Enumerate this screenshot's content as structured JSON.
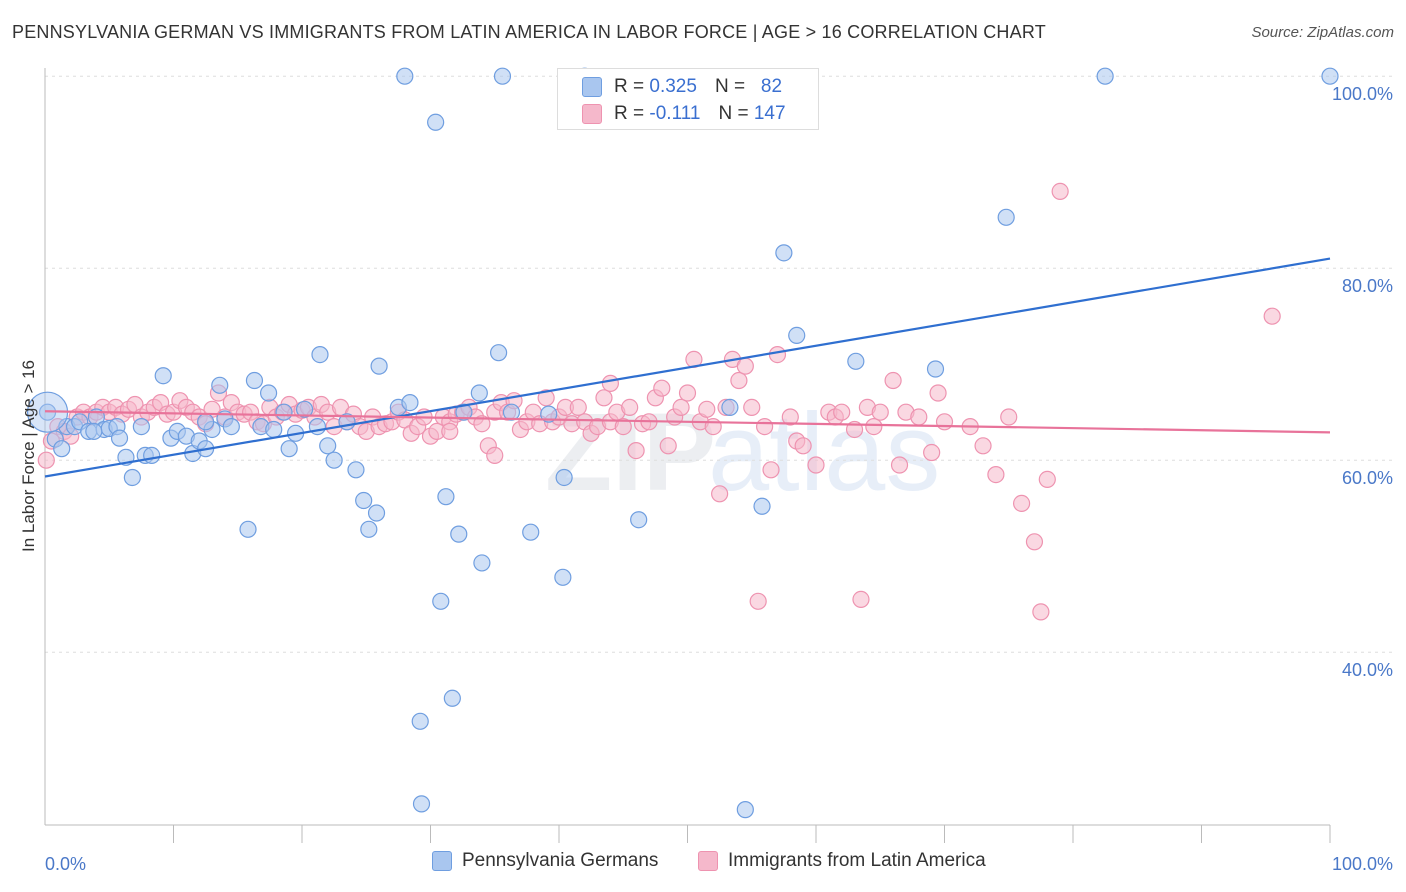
{
  "header": {
    "title": "PENNSYLVANIA GERMAN VS IMMIGRANTS FROM LATIN AMERICA IN LABOR FORCE | AGE > 16 CORRELATION CHART",
    "source": "Source: ZipAtlas.com"
  },
  "watermark": {
    "part1": "ZIP",
    "part2": "atlas"
  },
  "colors": {
    "blue_fill": "#a9c6ef",
    "blue_stroke": "#6f9ee0",
    "blue_line": "#2f6fd0",
    "pink_fill": "#f5b8cb",
    "pink_stroke": "#ee93b0",
    "pink_line": "#e8739a",
    "grid": "#dddddd",
    "axis_label": "#4a78c8"
  },
  "stats": [
    {
      "r_label": "R =",
      "r_value": "0.325",
      "n_label": "N =",
      "n_value": "82"
    },
    {
      "r_label": "R =",
      "r_value": "-0.111",
      "n_label": "N =",
      "n_value": "147"
    }
  ],
  "legend": [
    {
      "label": "Pennsylvania Germans"
    },
    {
      "label": "Immigrants from Latin America"
    }
  ],
  "chart_data": {
    "type": "scatter",
    "ylabel": "In Labor Force | Age > 16",
    "xlim": [
      0,
      100
    ],
    "ylim": [
      22,
      102
    ],
    "x_tick_labels": [
      {
        "x": 0,
        "label": "0.0%"
      },
      {
        "x": 100,
        "label": "100.0%"
      }
    ],
    "y_tick_labels": [
      {
        "y": 100,
        "label": "100.0%"
      },
      {
        "y": 80,
        "label": "80.0%"
      },
      {
        "y": 60,
        "label": "60.0%"
      },
      {
        "y": 40,
        "label": "40.0%"
      }
    ],
    "gridlines_y": [
      100,
      80,
      60,
      40
    ],
    "x_minor_ticks": [
      10,
      20,
      30,
      40,
      50,
      60,
      70,
      80,
      90,
      100
    ],
    "legend_position": "bottom",
    "series": [
      {
        "name": "Pennsylvania Germans",
        "color": "#6f9ee0",
        "trend": {
          "x": [
            0,
            100
          ],
          "y": [
            58.3,
            81.0
          ]
        },
        "points": [
          [
            0.2,
            65
          ],
          [
            0.8,
            62.2
          ],
          [
            1.3,
            61.2
          ],
          [
            1.7,
            63.5
          ],
          [
            2.3,
            63.5
          ],
          [
            2.7,
            64
          ],
          [
            3.4,
            63
          ],
          [
            4,
            64.5
          ],
          [
            4.6,
            63.2
          ],
          [
            5,
            63.3
          ],
          [
            5.6,
            63.5
          ],
          [
            5.8,
            62.3
          ],
          [
            6.3,
            60.3
          ],
          [
            6.8,
            58.2
          ],
          [
            7.5,
            63.5
          ],
          [
            7.8,
            60.5
          ],
          [
            8.3,
            60.5
          ],
          [
            9.2,
            68.8
          ],
          [
            9.8,
            62.3
          ],
          [
            10.3,
            63
          ],
          [
            11,
            62.5
          ],
          [
            11.5,
            60.7
          ],
          [
            12,
            62
          ],
          [
            12.5,
            61.2
          ],
          [
            13,
            63.2
          ],
          [
            13.6,
            67.8
          ],
          [
            14,
            64.3
          ],
          [
            14.5,
            63.5
          ],
          [
            15.8,
            52.8
          ],
          [
            16.3,
            68.3
          ],
          [
            16.8,
            63.5
          ],
          [
            17.4,
            67
          ],
          [
            17.8,
            63.2
          ],
          [
            18.6,
            65
          ],
          [
            19,
            61.2
          ],
          [
            19.5,
            62.8
          ],
          [
            20.2,
            65.3
          ],
          [
            21.2,
            63.5
          ],
          [
            21.4,
            71
          ],
          [
            22,
            61.5
          ],
          [
            22.5,
            60
          ],
          [
            23.5,
            64
          ],
          [
            24.2,
            59
          ],
          [
            24.8,
            55.8
          ],
          [
            25.2,
            52.8
          ],
          [
            25.8,
            54.5
          ],
          [
            26,
            69.8
          ],
          [
            27.5,
            65.5
          ],
          [
            28.4,
            66
          ],
          [
            29.2,
            32.8
          ],
          [
            29.3,
            24.2
          ],
          [
            30.4,
            95.2
          ],
          [
            30.8,
            45.3
          ],
          [
            31.2,
            56.2
          ],
          [
            31.7,
            35.2
          ],
          [
            32.2,
            52.3
          ],
          [
            32.6,
            65
          ],
          [
            33.8,
            67
          ],
          [
            34,
            49.3
          ],
          [
            35.3,
            71.2
          ],
          [
            35.6,
            100
          ],
          [
            36.3,
            65
          ],
          [
            37.8,
            52.5
          ],
          [
            39.2,
            64.8
          ],
          [
            40.3,
            47.8
          ],
          [
            40.4,
            58.2
          ],
          [
            42,
            100
          ],
          [
            46.2,
            53.8
          ],
          [
            47.4,
            95.5
          ],
          [
            53.3,
            65.5
          ],
          [
            54.5,
            23.6
          ],
          [
            55.8,
            55.2
          ],
          [
            57.5,
            81.6
          ],
          [
            58.5,
            73
          ],
          [
            63.1,
            70.3
          ],
          [
            69.3,
            69.5
          ],
          [
            74.8,
            85.3
          ],
          [
            82.5,
            100
          ],
          [
            100,
            100
          ],
          [
            28,
            100
          ],
          [
            12.5,
            64
          ],
          [
            3.8,
            63
          ]
        ]
      },
      {
        "name": "Immigrants from Latin America",
        "color": "#ee93b0",
        "trend": {
          "x": [
            0,
            100
          ],
          "y": [
            65.1,
            62.9
          ]
        },
        "points": [
          [
            0.1,
            60
          ],
          [
            0.5,
            62
          ],
          [
            1,
            63.5
          ],
          [
            1.5,
            63
          ],
          [
            2,
            62.5
          ],
          [
            2.5,
            64.5
          ],
          [
            3,
            65
          ],
          [
            3.5,
            64.5
          ],
          [
            4,
            65
          ],
          [
            4.5,
            65.5
          ],
          [
            5,
            65
          ],
          [
            5.5,
            65.5
          ],
          [
            6,
            64.8
          ],
          [
            6.5,
            65.3
          ],
          [
            7,
            65.8
          ],
          [
            7.5,
            64.5
          ],
          [
            8,
            65
          ],
          [
            8.5,
            65.5
          ],
          [
            9,
            66
          ],
          [
            9.5,
            64.8
          ],
          [
            10,
            65
          ],
          [
            10.5,
            66.2
          ],
          [
            11,
            65.5
          ],
          [
            11.5,
            65
          ],
          [
            12,
            64.5
          ],
          [
            12.5,
            63.8
          ],
          [
            13,
            65.3
          ],
          [
            13.5,
            67
          ],
          [
            14,
            64.5
          ],
          [
            14.5,
            66
          ],
          [
            15,
            65
          ],
          [
            15.5,
            64.8
          ],
          [
            16,
            65
          ],
          [
            16.5,
            64
          ],
          [
            17,
            63.8
          ],
          [
            17.5,
            65.5
          ],
          [
            18,
            64.5
          ],
          [
            18.5,
            65
          ],
          [
            19,
            65.8
          ],
          [
            19.5,
            64.8
          ],
          [
            20,
            65.2
          ],
          [
            20.5,
            65.5
          ],
          [
            21,
            64.5
          ],
          [
            21.5,
            65.8
          ],
          [
            22,
            65
          ],
          [
            22.5,
            63.5
          ],
          [
            23,
            65.5
          ],
          [
            23.5,
            64
          ],
          [
            24,
            64.8
          ],
          [
            24.5,
            63.5
          ],
          [
            25,
            63
          ],
          [
            25.5,
            64.5
          ],
          [
            26,
            63.5
          ],
          [
            26.5,
            63.8
          ],
          [
            27,
            64
          ],
          [
            27.5,
            65
          ],
          [
            28,
            64.2
          ],
          [
            28.5,
            62.8
          ],
          [
            29,
            63.5
          ],
          [
            29.5,
            64.5
          ],
          [
            30,
            62.5
          ],
          [
            30.5,
            63
          ],
          [
            31,
            64.5
          ],
          [
            31.5,
            64
          ],
          [
            32,
            64.8
          ],
          [
            32.5,
            65
          ],
          [
            33,
            65.5
          ],
          [
            33.5,
            64.5
          ],
          [
            34,
            63.8
          ],
          [
            34.5,
            61.5
          ],
          [
            35,
            65
          ],
          [
            35.5,
            66
          ],
          [
            36,
            65
          ],
          [
            36.5,
            66.2
          ],
          [
            37,
            63.2
          ],
          [
            37.5,
            64
          ],
          [
            38,
            65
          ],
          [
            38.5,
            63.8
          ],
          [
            39,
            66.5
          ],
          [
            39.5,
            64
          ],
          [
            40,
            64.5
          ],
          [
            40.5,
            65.5
          ],
          [
            41,
            63.8
          ],
          [
            41.5,
            65.5
          ],
          [
            42,
            64
          ],
          [
            42.5,
            62.8
          ],
          [
            43,
            63.5
          ],
          [
            43.5,
            66.5
          ],
          [
            44,
            64
          ],
          [
            44.5,
            65
          ],
          [
            45,
            63.5
          ],
          [
            45.5,
            65.5
          ],
          [
            46,
            61
          ],
          [
            46.5,
            63.8
          ],
          [
            47,
            64
          ],
          [
            47.5,
            66.5
          ],
          [
            48,
            67.5
          ],
          [
            48.5,
            61.5
          ],
          [
            49,
            64.5
          ],
          [
            49.5,
            65.5
          ],
          [
            50,
            67
          ],
          [
            50.5,
            70.5
          ],
          [
            51,
            64
          ],
          [
            51.5,
            65.3
          ],
          [
            52,
            63.5
          ],
          [
            52.5,
            56.5
          ],
          [
            53,
            65.5
          ],
          [
            53.5,
            70.5
          ],
          [
            54,
            68.3
          ],
          [
            54.5,
            69.8
          ],
          [
            55,
            65.5
          ],
          [
            55.5,
            45.3
          ],
          [
            56,
            63.5
          ],
          [
            56.5,
            59
          ],
          [
            57,
            71
          ],
          [
            58,
            64.5
          ],
          [
            58.5,
            62
          ],
          [
            59,
            61.5
          ],
          [
            60,
            59.5
          ],
          [
            61,
            65
          ],
          [
            61.5,
            64.5
          ],
          [
            62,
            65
          ],
          [
            63,
            63.2
          ],
          [
            63.5,
            45.5
          ],
          [
            64,
            65.5
          ],
          [
            64.5,
            63.5
          ],
          [
            65,
            65
          ],
          [
            66,
            68.3
          ],
          [
            66.5,
            59.5
          ],
          [
            67,
            65
          ],
          [
            68,
            64.5
          ],
          [
            69,
            60.8
          ],
          [
            69.5,
            67
          ],
          [
            70,
            64
          ],
          [
            72,
            63.5
          ],
          [
            73,
            61.5
          ],
          [
            74,
            58.5
          ],
          [
            75,
            64.5
          ],
          [
            76,
            55.5
          ],
          [
            77,
            51.5
          ],
          [
            77.5,
            44.2
          ],
          [
            78,
            58
          ],
          [
            79,
            88
          ],
          [
            95.5,
            75
          ],
          [
            31.5,
            63
          ],
          [
            44,
            68
          ],
          [
            35,
            60.5
          ]
        ]
      }
    ]
  }
}
